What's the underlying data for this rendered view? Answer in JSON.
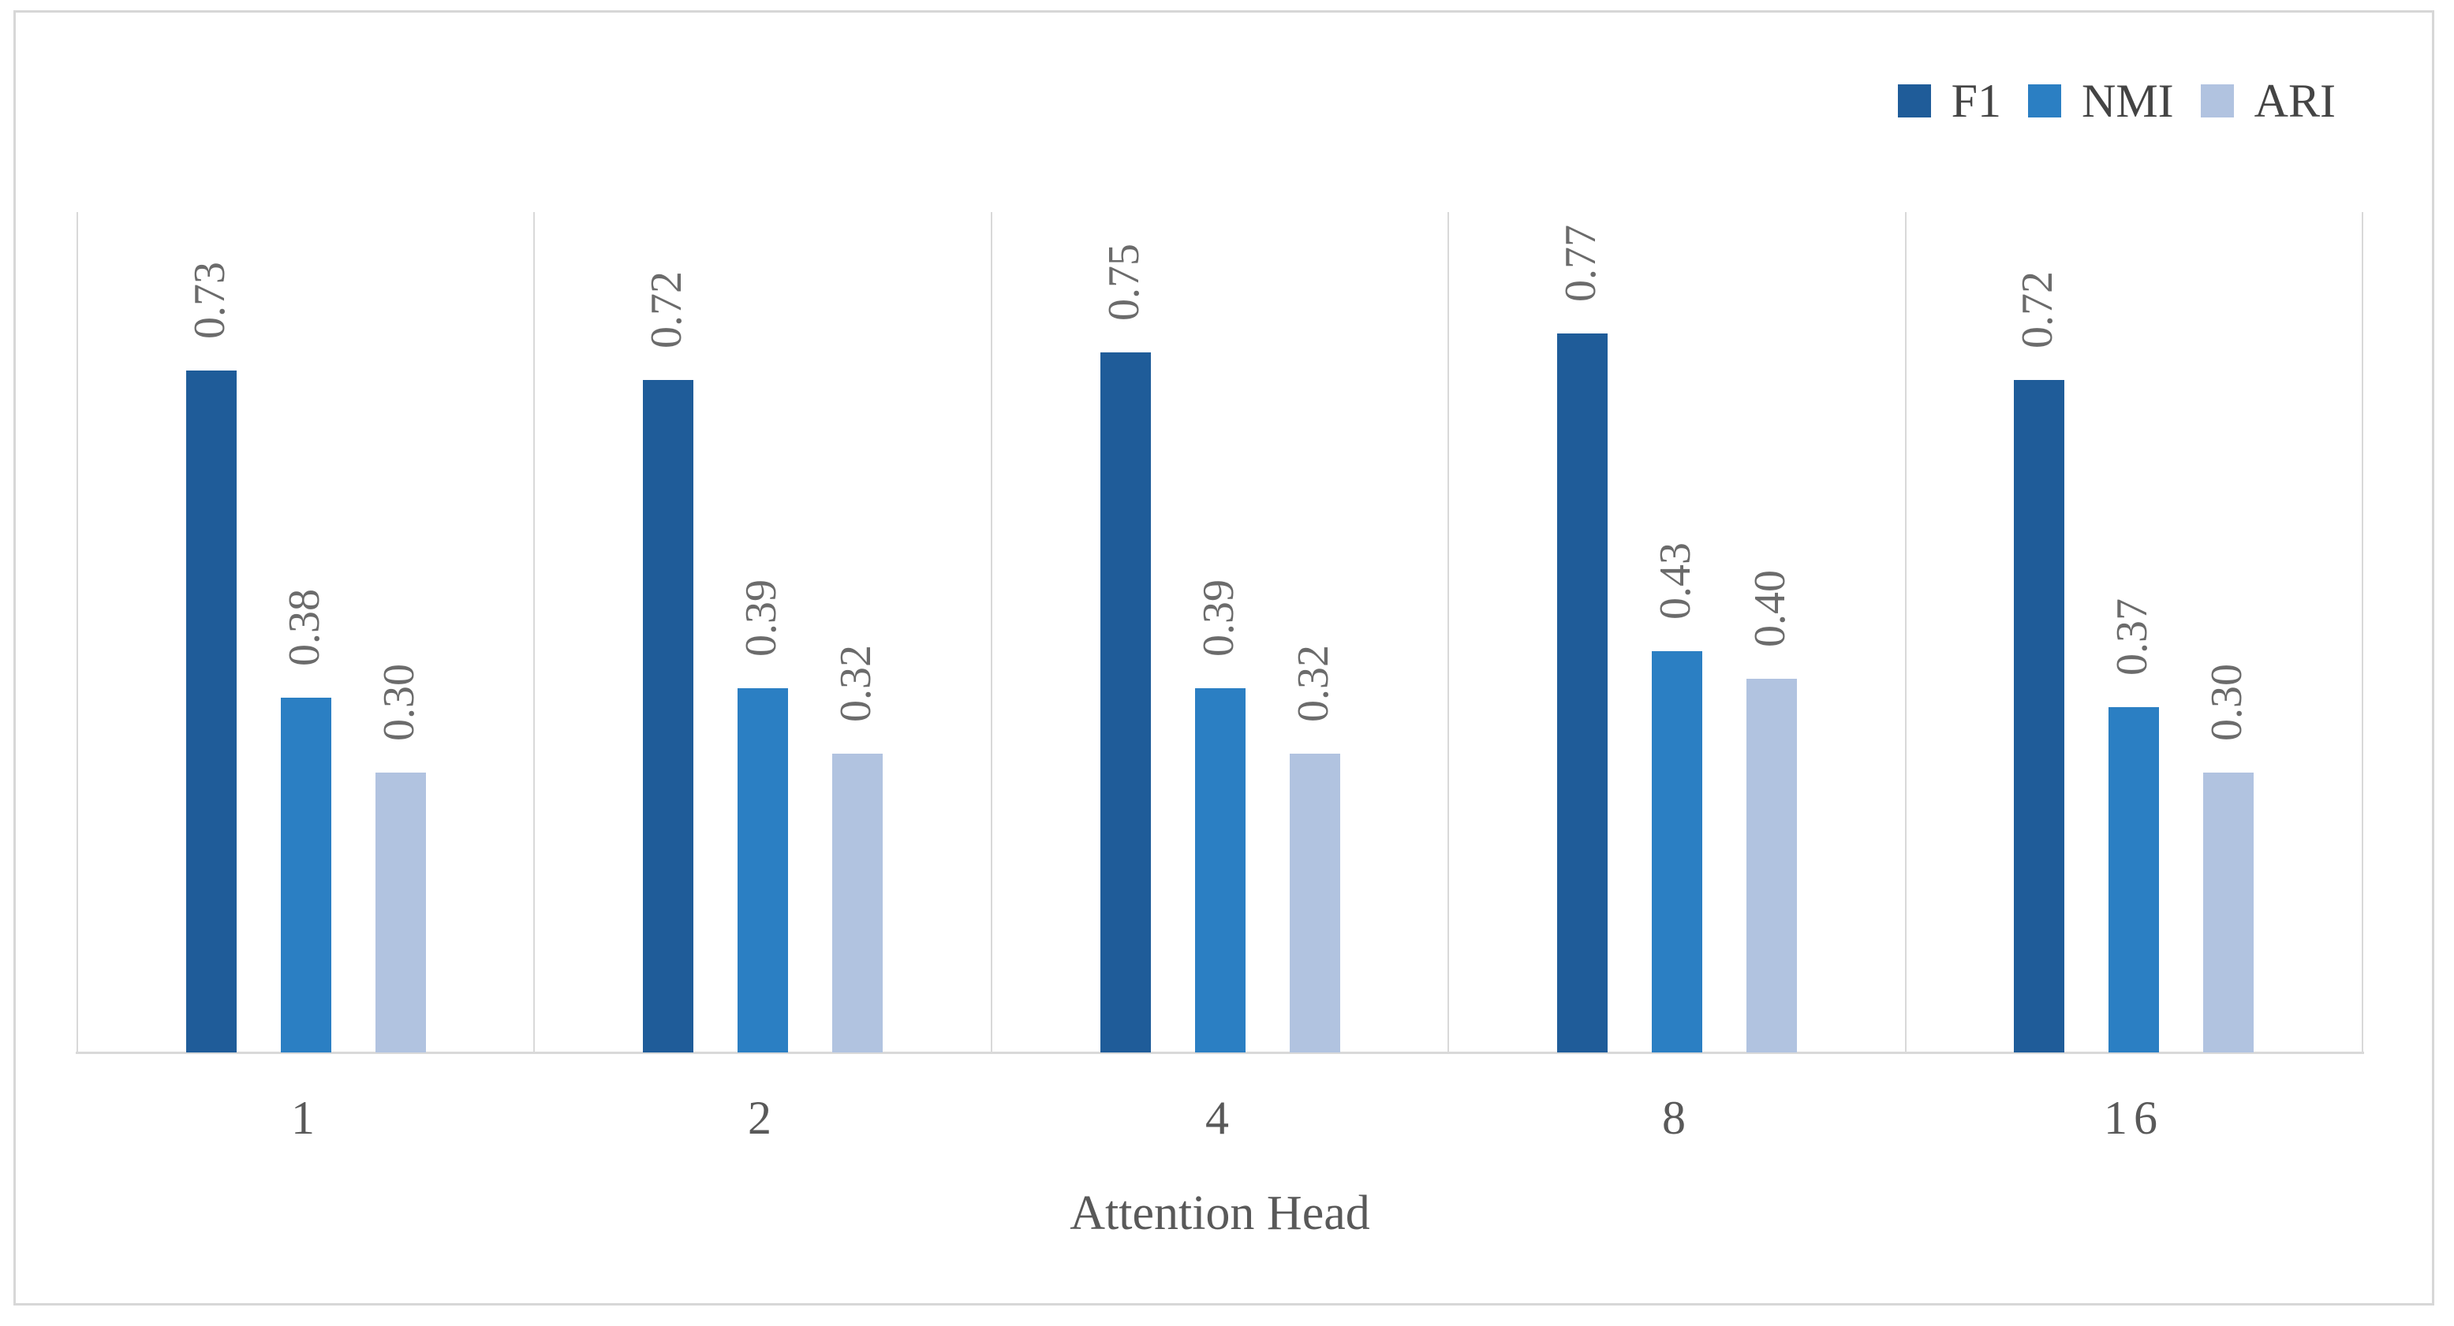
{
  "chart_data": {
    "type": "bar",
    "title": "",
    "xlabel": "Attention Head",
    "ylabel": "",
    "ylim": [
      0,
      0.9
    ],
    "grid": "vertical-category-separators",
    "legend_position": "top-right",
    "categories": [
      "1",
      "2",
      "4",
      "8",
      "16"
    ],
    "series": [
      {
        "name": "F1",
        "color": "#1f5c99",
        "values": [
          0.73,
          0.72,
          0.75,
          0.77,
          0.72
        ]
      },
      {
        "name": "NMI",
        "color": "#2b7fc3",
        "values": [
          0.38,
          0.39,
          0.39,
          0.43,
          0.37
        ]
      },
      {
        "name": "ARI",
        "color": "#b1c3e0",
        "values": [
          0.3,
          0.32,
          0.32,
          0.4,
          0.3
        ]
      }
    ],
    "value_label_rotation_deg": -90,
    "value_label_format": "2-decimals",
    "line_color": "#d9d9d9",
    "text_color": "#595959"
  }
}
